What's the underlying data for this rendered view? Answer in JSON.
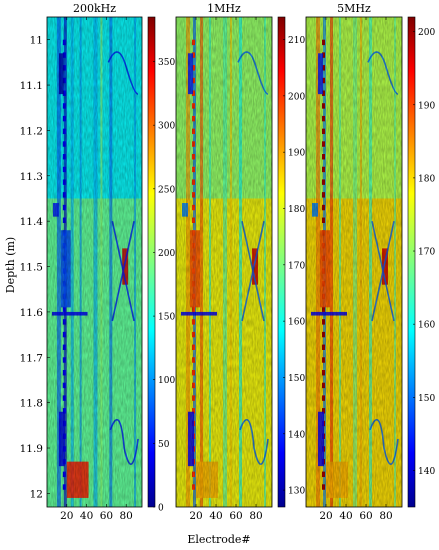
{
  "figure": {
    "ylabel": "Depth (m)",
    "xlabel": "Electrode#"
  },
  "chart_data": [
    {
      "type": "heatmap",
      "title": "200kHz",
      "xlabel": "Electrode#",
      "ylabel": "Depth (m)",
      "xlim": [
        0,
        96
      ],
      "x_ticks": [
        20,
        40,
        60,
        80
      ],
      "ylim": [
        10.95,
        12.03
      ],
      "y_ticks": [
        11,
        11.1,
        11.2,
        11.3,
        11.4,
        11.5,
        11.6,
        11.7,
        11.8,
        11.9,
        12
      ],
      "colorbar": {
        "min": 0,
        "max": 385,
        "ticks": [
          0,
          50,
          100,
          150,
          200,
          250,
          300,
          350
        ]
      },
      "colormap": "jet"
    },
    {
      "type": "heatmap",
      "title": "1MHz",
      "xlabel": "Electrode#",
      "xlim": [
        0,
        96
      ],
      "x_ticks": [
        20,
        40,
        60,
        80
      ],
      "ylim": [
        10.95,
        12.03
      ],
      "colorbar": {
        "min": 127,
        "max": 214,
        "ticks": [
          130,
          140,
          150,
          160,
          170,
          180,
          190,
          200,
          210
        ]
      },
      "colormap": "jet"
    },
    {
      "type": "heatmap",
      "title": "5MHz",
      "xlabel": "Electrode#",
      "xlim": [
        0,
        96
      ],
      "x_ticks": [
        20,
        40,
        60,
        80
      ],
      "ylim": [
        10.95,
        12.03
      ],
      "colorbar": {
        "min": 135,
        "max": 202,
        "ticks": [
          140,
          150,
          160,
          170,
          180,
          190,
          200
        ]
      },
      "colormap": "jet"
    }
  ]
}
